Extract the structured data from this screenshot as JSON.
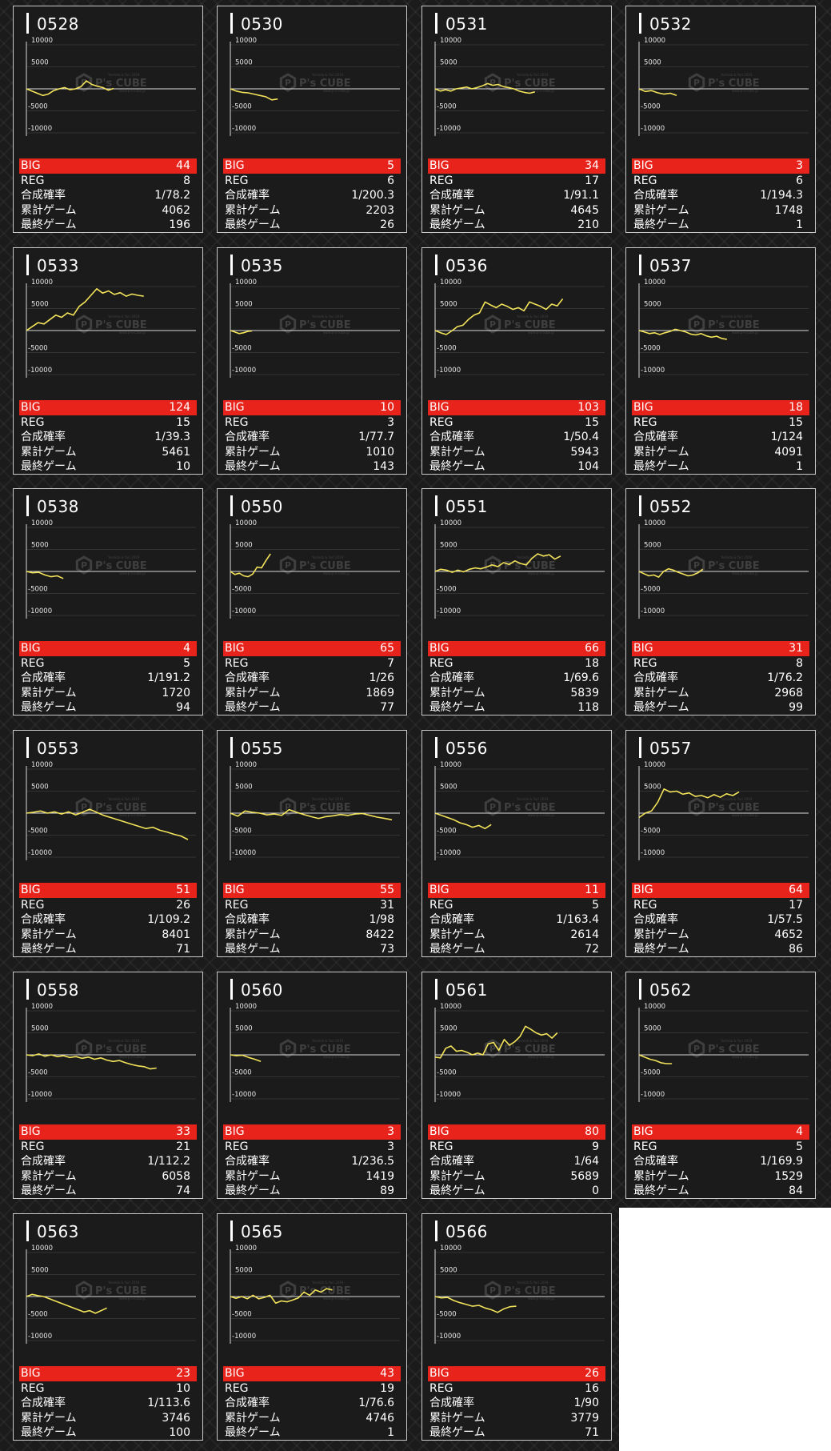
{
  "labels": {
    "big": "BIG",
    "reg": "REG",
    "rate": "合成確率",
    "total": "累計ゲーム",
    "last": "最終ゲーム"
  },
  "axis": {
    "ticks": [
      "10000",
      "5000",
      "-5000",
      "-10000"
    ],
    "ylim": [
      -10000,
      10000
    ]
  },
  "watermark": {
    "brand": "P's CUBE",
    "tagline": "Yoshida & Yuri 2019",
    "subtag": "www.p-s-cube.jp"
  },
  "colors": {
    "line": "#f2e35a",
    "big_bg": "#e8231b",
    "card_bg": "#1b1b1b",
    "border": "#c9c9c9"
  },
  "machines": [
    {
      "id": "0528",
      "big": "44",
      "reg": "8",
      "rate": "1/78.2",
      "total": "4062",
      "last": "196",
      "chart": [
        0,
        -500,
        -1000,
        -1500,
        -1200,
        -400,
        0,
        300,
        -200,
        0,
        500,
        1800,
        1000,
        600,
        300,
        -300,
        100
      ]
    },
    {
      "id": "0530",
      "big": "5",
      "reg": "6",
      "rate": "1/200.3",
      "total": "2203",
      "last": "26",
      "chart": [
        0,
        -500,
        -800,
        -900,
        -1200,
        -1500,
        -1800,
        -2500,
        -2300
      ]
    },
    {
      "id": "0531",
      "big": "34",
      "reg": "17",
      "rate": "1/91.1",
      "total": "4645",
      "last": "210",
      "chart": [
        0,
        -500,
        -200,
        -500,
        0,
        200,
        400,
        0,
        300,
        700,
        1200,
        800,
        1000,
        500,
        300,
        0,
        -500,
        -800,
        -1000,
        -700
      ]
    },
    {
      "id": "0532",
      "big": "3",
      "reg": "6",
      "rate": "1/194.3",
      "total": "1748",
      "last": "1",
      "chart": [
        0,
        -600,
        -400,
        -900,
        -1200,
        -1000,
        -1500
      ]
    },
    {
      "id": "0533",
      "big": "124",
      "reg": "15",
      "rate": "1/39.3",
      "total": "5461",
      "last": "10",
      "chart": [
        0,
        900,
        1800,
        1500,
        2500,
        3500,
        3000,
        4000,
        3500,
        5500,
        6500,
        8000,
        9500,
        8500,
        9000,
        8200,
        8600,
        7800,
        8300,
        8000,
        7800
      ]
    },
    {
      "id": "0535",
      "big": "10",
      "reg": "3",
      "rate": "1/77.7",
      "total": "1010",
      "last": "143",
      "chart": [
        0,
        -300,
        -700,
        -500,
        -200,
        -100
      ]
    },
    {
      "id": "0536",
      "big": "103",
      "reg": "15",
      "rate": "1/50.4",
      "total": "5943",
      "last": "104",
      "chart": [
        0,
        -500,
        -900,
        -100,
        900,
        1200,
        2500,
        3500,
        4000,
        6500,
        5800,
        5200,
        6000,
        5500,
        4800,
        5200,
        4500,
        6500,
        6000,
        5500,
        4800,
        6000,
        5600,
        7200
      ]
    },
    {
      "id": "0537",
      "big": "18",
      "reg": "15",
      "rate": "1/124",
      "total": "4091",
      "last": "1",
      "chart": [
        0,
        -300,
        -700,
        -500,
        -900,
        -500,
        -200,
        300,
        0,
        -300,
        -800,
        -1000,
        -700,
        -1200,
        -1500,
        -1300,
        -1800,
        -2000
      ]
    },
    {
      "id": "0538",
      "big": "4",
      "reg": "5",
      "rate": "1/191.2",
      "total": "1720",
      "last": "94",
      "chart": [
        0,
        -300,
        -200,
        -800,
        -1200,
        -1000,
        -1600
      ]
    },
    {
      "id": "0550",
      "big": "65",
      "reg": "7",
      "rate": "1/26",
      "total": "1869",
      "last": "77",
      "chart": [
        0,
        -700,
        -400,
        -1000,
        -1200,
        -600,
        1000,
        800,
        2500,
        4000
      ]
    },
    {
      "id": "0551",
      "big": "66",
      "reg": "18",
      "rate": "1/69.6",
      "total": "5839",
      "last": "118",
      "chart": [
        0,
        500,
        300,
        -200,
        300,
        -100,
        500,
        800,
        600,
        1000,
        1500,
        1100,
        2000,
        1600,
        2400,
        1800,
        1500,
        3000,
        4000,
        3500,
        3800,
        2800,
        3500
      ]
    },
    {
      "id": "0552",
      "big": "31",
      "reg": "8",
      "rate": "1/76.2",
      "total": "2968",
      "last": "99",
      "chart": [
        0,
        -500,
        -1000,
        -800,
        -1300,
        0,
        600,
        300,
        -200,
        -600,
        -1000,
        -800,
        -300,
        500
      ]
    },
    {
      "id": "0553",
      "big": "51",
      "reg": "26",
      "rate": "1/109.2",
      "total": "8401",
      "last": "71",
      "chart": [
        0,
        200,
        500,
        0,
        300,
        -200,
        300,
        -400,
        200,
        900,
        200,
        -500,
        -1000,
        -1500,
        -2000,
        -2500,
        -3000,
        -3500,
        -3200,
        -3900,
        -4300,
        -4800,
        -5200,
        -6000
      ]
    },
    {
      "id": "0555",
      "big": "55",
      "reg": "31",
      "rate": "1/98",
      "total": "8422",
      "last": "73",
      "chart": [
        0,
        -700,
        500,
        200,
        0,
        -400,
        -200,
        -500,
        800,
        200,
        -300,
        -800,
        -1200,
        -800,
        -600,
        -300,
        -500,
        -200,
        -100,
        -500,
        -900,
        -1200,
        -1500
      ]
    },
    {
      "id": "0556",
      "big": "11",
      "reg": "5",
      "rate": "1/163.4",
      "total": "2614",
      "last": "72",
      "chart": [
        0,
        -500,
        -1000,
        -1500,
        -2200,
        -2600,
        -3200,
        -2800,
        -3500,
        -2600
      ]
    },
    {
      "id": "0557",
      "big": "64",
      "reg": "17",
      "rate": "1/57.5",
      "total": "4652",
      "last": "86",
      "chart": [
        -1000,
        0,
        500,
        2500,
        5500,
        4800,
        5000,
        4300,
        4600,
        3800,
        4000,
        3500,
        4200,
        3600,
        4400,
        4000,
        4800
      ]
    },
    {
      "id": "0558",
      "big": "33",
      "reg": "21",
      "rate": "1/112.2",
      "total": "6058",
      "last": "74",
      "chart": [
        0,
        -200,
        200,
        -300,
        0,
        -400,
        -200,
        -600,
        -400,
        -800,
        -500,
        -1000,
        -700,
        -1200,
        -1500,
        -1300,
        -1800,
        -2200,
        -2500,
        -2700,
        -3200,
        -3000
      ]
    },
    {
      "id": "0560",
      "big": "3",
      "reg": "3",
      "rate": "1/236.5",
      "total": "1419",
      "last": "89",
      "chart": [
        0,
        -200,
        -100,
        -600,
        -1000,
        -1500
      ]
    },
    {
      "id": "0561",
      "big": "80",
      "reg": "9",
      "rate": "1/64",
      "total": "5689",
      "last": "0",
      "chart": [
        -500,
        -700,
        1500,
        2000,
        800,
        1000,
        600,
        0,
        400,
        0,
        2500,
        2800,
        1000,
        3500,
        2200,
        3000,
        4200,
        6500,
        5800,
        5000,
        4500,
        4800,
        3800,
        5000
      ]
    },
    {
      "id": "0562",
      "big": "4",
      "reg": "5",
      "rate": "1/169.9",
      "total": "1529",
      "last": "84",
      "chart": [
        0,
        -500,
        -1000,
        -1300,
        -1800,
        -2000,
        -2000
      ]
    },
    {
      "id": "0563",
      "big": "23",
      "reg": "10",
      "rate": "1/113.6",
      "total": "3746",
      "last": "100",
      "chart": [
        0,
        500,
        200,
        0,
        -500,
        -1000,
        -1500,
        -2000,
        -2500,
        -3000,
        -3500,
        -3200,
        -3800,
        -3200,
        -2600
      ]
    },
    {
      "id": "0565",
      "big": "43",
      "reg": "19",
      "rate": "1/76.6",
      "total": "4746",
      "last": "1",
      "chart": [
        0,
        -400,
        0,
        -500,
        300,
        -500,
        -200,
        300,
        -1500,
        -1000,
        -1200,
        -800,
        -300,
        1000,
        300,
        1500,
        1000,
        1800,
        1500
      ]
    },
    {
      "id": "0566",
      "big": "26",
      "reg": "16",
      "rate": "1/90",
      "total": "3779",
      "last": "71",
      "chart": [
        0,
        -300,
        -200,
        -900,
        -1400,
        -1800,
        -2200,
        -2000,
        -2600,
        -3000,
        -3600,
        -2800,
        -2300,
        -2200
      ]
    }
  ]
}
